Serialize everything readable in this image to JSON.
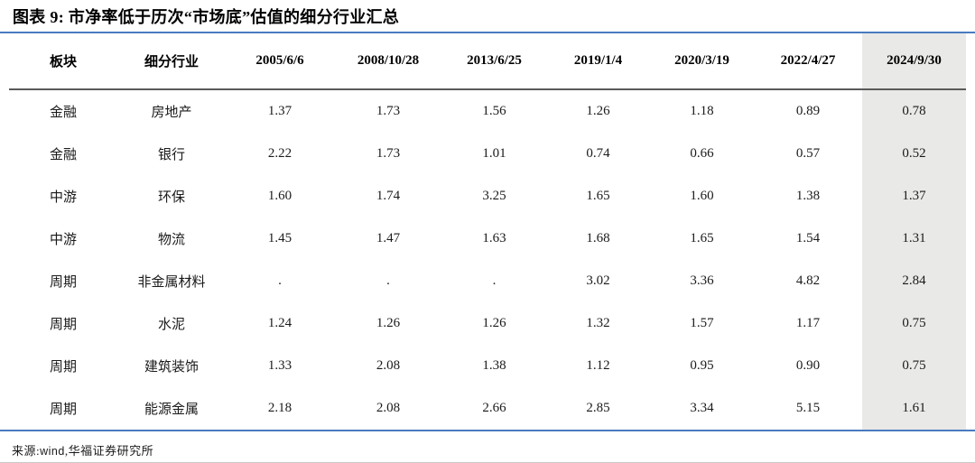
{
  "title": "图表 9: 市净率低于历次“市场底”估值的细分行业汇总",
  "footer": {
    "label": "来源:",
    "source_sans": "wind",
    "source_rest": ",华福证券研究所"
  },
  "colors": {
    "accent_blue_rule": "#4a7bbf",
    "header_rule": "#5a5a5a",
    "highlight_column_bg": "#e9e9e7"
  },
  "chart_data": {
    "type": "table",
    "title": "市净率低于历次“市场底”估值的细分行业汇总",
    "columns": [
      "板块",
      "细分行业",
      "2005/6/6",
      "2008/10/28",
      "2013/6/25",
      "2019/1/4",
      "2020/3/19",
      "2022/4/27",
      "2024/9/30"
    ],
    "highlight_column_index": 8,
    "rows": [
      [
        "金融",
        "房地产",
        "1.37",
        "1.73",
        "1.56",
        "1.26",
        "1.18",
        "0.89",
        "0.78"
      ],
      [
        "金融",
        "银行",
        "2.22",
        "1.73",
        "1.01",
        "0.74",
        "0.66",
        "0.57",
        "0.52"
      ],
      [
        "中游",
        "环保",
        "1.60",
        "1.74",
        "3.25",
        "1.65",
        "1.60",
        "1.38",
        "1.37"
      ],
      [
        "中游",
        "物流",
        "1.45",
        "1.47",
        "1.63",
        "1.68",
        "1.65",
        "1.54",
        "1.31"
      ],
      [
        "周期",
        "非金属材料",
        ".",
        ".",
        ".",
        "3.02",
        "3.36",
        "4.82",
        "2.84"
      ],
      [
        "周期",
        "水泥",
        "1.24",
        "1.26",
        "1.26",
        "1.32",
        "1.57",
        "1.17",
        "0.75"
      ],
      [
        "周期",
        "建筑装饰",
        "1.33",
        "2.08",
        "1.38",
        "1.12",
        "0.95",
        "0.90",
        "0.75"
      ],
      [
        "周期",
        "能源金属",
        "2.18",
        "2.08",
        "2.66",
        "2.85",
        "3.34",
        "5.15",
        "1.61"
      ]
    ]
  }
}
